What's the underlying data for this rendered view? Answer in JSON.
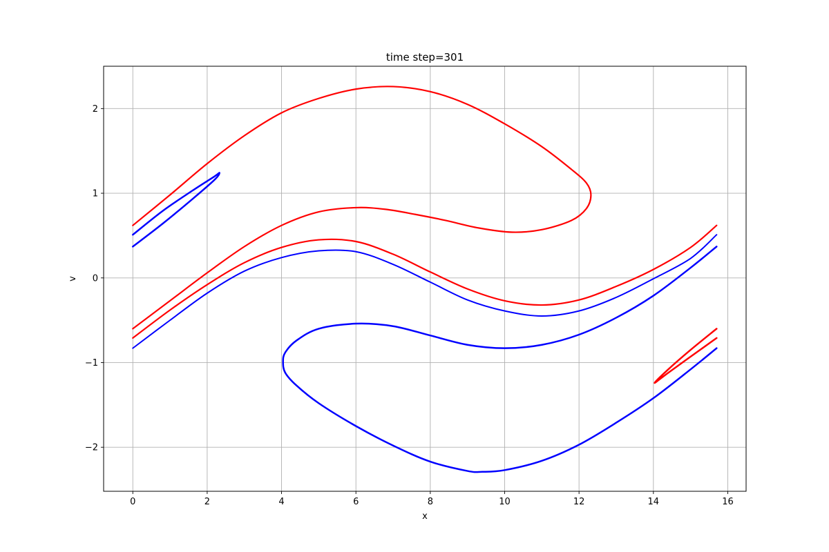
{
  "chart_data": {
    "type": "line",
    "title": "time step=301",
    "xlabel": "x",
    "ylabel": "v",
    "xlim": [
      -0.785,
      16.493
    ],
    "ylim": [
      -2.52,
      2.5
    ],
    "xticks": [
      0,
      2,
      4,
      6,
      8,
      10,
      12,
      14,
      16
    ],
    "yticks": [
      -2,
      -1,
      0,
      1,
      2
    ],
    "xtick_labels": [
      "0",
      "2",
      "4",
      "6",
      "8",
      "10",
      "12",
      "14",
      "16"
    ],
    "ytick_labels": [
      "−2",
      "−1",
      "0",
      "1",
      "2"
    ],
    "grid": true,
    "colors": {
      "series_a": "#ff0000",
      "series_b": "#0000ff"
    },
    "series": [
      {
        "color": "#ff0000",
        "width": 2.2,
        "points": [
          [
            0.0,
            0.62
          ],
          [
            1.0,
            0.98
          ],
          [
            2.0,
            1.35
          ],
          [
            3.0,
            1.68
          ],
          [
            4.0,
            1.95
          ],
          [
            5.0,
            2.12
          ],
          [
            6.0,
            2.23
          ],
          [
            7.0,
            2.26
          ],
          [
            8.0,
            2.2
          ],
          [
            9.0,
            2.05
          ],
          [
            10.0,
            1.82
          ],
          [
            11.0,
            1.55
          ],
          [
            11.8,
            1.28
          ],
          [
            12.2,
            1.12
          ],
          [
            12.32,
            0.98
          ],
          [
            12.2,
            0.82
          ],
          [
            11.8,
            0.68
          ],
          [
            11.0,
            0.57
          ],
          [
            10.2,
            0.54
          ],
          [
            9.3,
            0.59
          ],
          [
            8.4,
            0.68
          ],
          [
            7.6,
            0.75
          ],
          [
            6.8,
            0.81
          ],
          [
            6.0,
            0.83
          ],
          [
            5.0,
            0.78
          ],
          [
            4.0,
            0.62
          ],
          [
            3.0,
            0.37
          ],
          [
            2.0,
            0.06
          ],
          [
            1.0,
            -0.27
          ],
          [
            0.0,
            -0.6
          ]
        ]
      },
      {
        "color": "#0000ff",
        "width": 2.5,
        "points": [
          [
            0.0,
            0.51
          ],
          [
            0.8,
            0.79
          ],
          [
            1.6,
            1.03
          ],
          [
            2.2,
            1.2
          ],
          [
            2.33,
            1.24
          ],
          [
            2.2,
            1.16
          ],
          [
            1.6,
            0.93
          ],
          [
            0.8,
            0.64
          ],
          [
            0.0,
            0.37
          ]
        ]
      },
      {
        "color": "#ff0000",
        "width": 2.2,
        "points": [
          [
            0.0,
            -0.71
          ],
          [
            1.0,
            -0.38
          ],
          [
            2.0,
            -0.08
          ],
          [
            3.0,
            0.18
          ],
          [
            4.0,
            0.36
          ],
          [
            5.0,
            0.45
          ],
          [
            6.0,
            0.43
          ],
          [
            7.0,
            0.28
          ],
          [
            8.0,
            0.07
          ],
          [
            9.0,
            -0.13
          ],
          [
            10.0,
            -0.27
          ],
          [
            11.0,
            -0.32
          ],
          [
            12.0,
            -0.26
          ],
          [
            13.0,
            -0.1
          ],
          [
            14.0,
            0.1
          ],
          [
            15.0,
            0.36
          ],
          [
            15.7,
            0.62
          ]
        ]
      },
      {
        "color": "#0000ff",
        "width": 2.0,
        "points": [
          [
            0.0,
            -0.83
          ],
          [
            1.0,
            -0.5
          ],
          [
            2.0,
            -0.18
          ],
          [
            3.0,
            0.08
          ],
          [
            4.0,
            0.24
          ],
          [
            5.0,
            0.32
          ],
          [
            6.0,
            0.31
          ],
          [
            7.0,
            0.16
          ],
          [
            8.0,
            -0.05
          ],
          [
            9.0,
            -0.26
          ],
          [
            10.0,
            -0.39
          ],
          [
            11.0,
            -0.45
          ],
          [
            12.0,
            -0.39
          ],
          [
            13.0,
            -0.23
          ],
          [
            14.0,
            -0.01
          ],
          [
            15.0,
            0.23
          ],
          [
            15.7,
            0.51
          ]
        ]
      },
      {
        "color": "#0000ff",
        "width": 2.5,
        "points": [
          [
            15.7,
            0.37
          ],
          [
            15.0,
            0.12
          ],
          [
            14.0,
            -0.21
          ],
          [
            13.0,
            -0.47
          ],
          [
            12.0,
            -0.67
          ],
          [
            11.0,
            -0.79
          ],
          [
            10.0,
            -0.83
          ],
          [
            9.0,
            -0.79
          ],
          [
            8.0,
            -0.68
          ],
          [
            7.0,
            -0.57
          ],
          [
            6.0,
            -0.54
          ],
          [
            5.0,
            -0.6
          ],
          [
            4.4,
            -0.74
          ],
          [
            4.1,
            -0.88
          ],
          [
            4.04,
            -0.99
          ],
          [
            4.1,
            -1.12
          ],
          [
            4.4,
            -1.27
          ],
          [
            5.0,
            -1.48
          ],
          [
            6.0,
            -1.75
          ],
          [
            7.0,
            -1.98
          ],
          [
            8.0,
            -2.17
          ],
          [
            9.0,
            -2.28
          ],
          [
            9.4,
            -2.29
          ],
          [
            10.0,
            -2.27
          ],
          [
            11.0,
            -2.16
          ],
          [
            12.0,
            -1.97
          ],
          [
            13.0,
            -1.71
          ],
          [
            14.0,
            -1.42
          ],
          [
            15.0,
            -1.08
          ],
          [
            15.7,
            -0.83
          ]
        ]
      },
      {
        "color": "#ff0000",
        "width": 2.5,
        "points": [
          [
            15.7,
            -0.6
          ],
          [
            15.0,
            -0.85
          ],
          [
            14.4,
            -1.08
          ],
          [
            14.03,
            -1.24
          ],
          [
            14.4,
            -1.12
          ],
          [
            15.0,
            -0.93
          ],
          [
            15.7,
            -0.71
          ]
        ]
      }
    ]
  }
}
